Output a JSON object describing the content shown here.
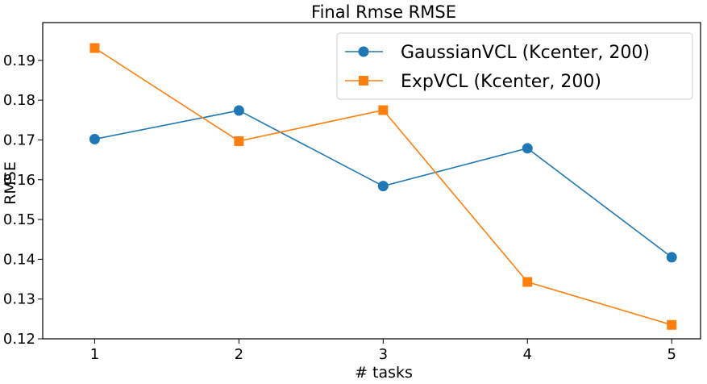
{
  "chart_data": {
    "type": "line",
    "title": "Final Rmse RMSE",
    "xlabel": "# tasks",
    "ylabel": "RMSE",
    "x": [
      1,
      2,
      3,
      4,
      5
    ],
    "xticks": [
      "1",
      "2",
      "3",
      "4",
      "5"
    ],
    "yticks": [
      "0.12",
      "0.13",
      "0.14",
      "0.15",
      "0.16",
      "0.17",
      "0.18",
      "0.19"
    ],
    "xlim": [
      0.64,
      5.2
    ],
    "ylim": [
      0.12,
      0.1995
    ],
    "grid": false,
    "legend_position": "top-right",
    "series": [
      {
        "name": "GaussianVCL (Kcenter, 200)",
        "color": "#1f77b4",
        "marker": "circle",
        "values": [
          0.1702,
          0.1774,
          0.1584,
          0.1679,
          0.1405
        ]
      },
      {
        "name": "ExpVCL (Kcenter, 200)",
        "color": "#ff7f0e",
        "marker": "square",
        "values": [
          0.1931,
          0.1697,
          0.1775,
          0.1343,
          0.1235
        ]
      }
    ]
  }
}
